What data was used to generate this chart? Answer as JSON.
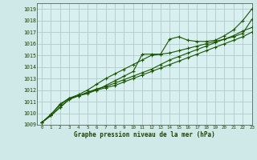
{
  "title": "Graphe pression niveau de la mer (hPa)",
  "bg_color": "#cfe8e8",
  "plot_bg_color": "#d8f0f0",
  "grid_color": "#b0cccc",
  "line_color": "#1a5500",
  "xlim": [
    -0.5,
    23
  ],
  "ylim": [
    1009,
    1019.5
  ],
  "xticks": [
    0,
    1,
    2,
    3,
    4,
    5,
    6,
    7,
    8,
    9,
    10,
    11,
    12,
    13,
    14,
    15,
    16,
    17,
    18,
    19,
    20,
    21,
    22,
    23
  ],
  "yticks": [
    1009,
    1010,
    1011,
    1012,
    1013,
    1014,
    1015,
    1016,
    1017,
    1018,
    1019
  ],
  "line1": [
    1009.2,
    1009.9,
    1010.7,
    1011.3,
    1011.5,
    1011.7,
    1012.0,
    1012.4,
    1012.8,
    1013.2,
    1013.6,
    1015.1,
    1015.1,
    1015.1,
    1016.4,
    1016.6,
    1016.3,
    1016.2,
    1016.2,
    1016.3,
    1016.7,
    1017.2,
    1018.0,
    1019.0
  ],
  "line2": [
    1009.2,
    1009.9,
    1010.8,
    1011.3,
    1011.6,
    1012.0,
    1012.5,
    1013.0,
    1013.4,
    1013.8,
    1014.2,
    1014.6,
    1015.0,
    1015.1,
    1015.2,
    1015.4,
    1015.6,
    1015.8,
    1016.0,
    1016.2,
    1016.4,
    1016.7,
    1017.1,
    1017.4
  ],
  "line3": [
    1009.2,
    1009.8,
    1010.5,
    1011.2,
    1011.5,
    1011.8,
    1012.1,
    1012.3,
    1012.6,
    1012.9,
    1013.2,
    1013.5,
    1013.8,
    1014.2,
    1014.6,
    1014.9,
    1015.2,
    1015.5,
    1015.8,
    1016.1,
    1016.4,
    1016.6,
    1016.9,
    1018.1
  ],
  "line4": [
    1009.2,
    1009.8,
    1010.5,
    1011.2,
    1011.5,
    1011.8,
    1012.0,
    1012.2,
    1012.4,
    1012.7,
    1013.0,
    1013.3,
    1013.6,
    1013.9,
    1014.2,
    1014.5,
    1014.8,
    1015.1,
    1015.4,
    1015.7,
    1016.0,
    1016.3,
    1016.6,
    1017.0
  ]
}
